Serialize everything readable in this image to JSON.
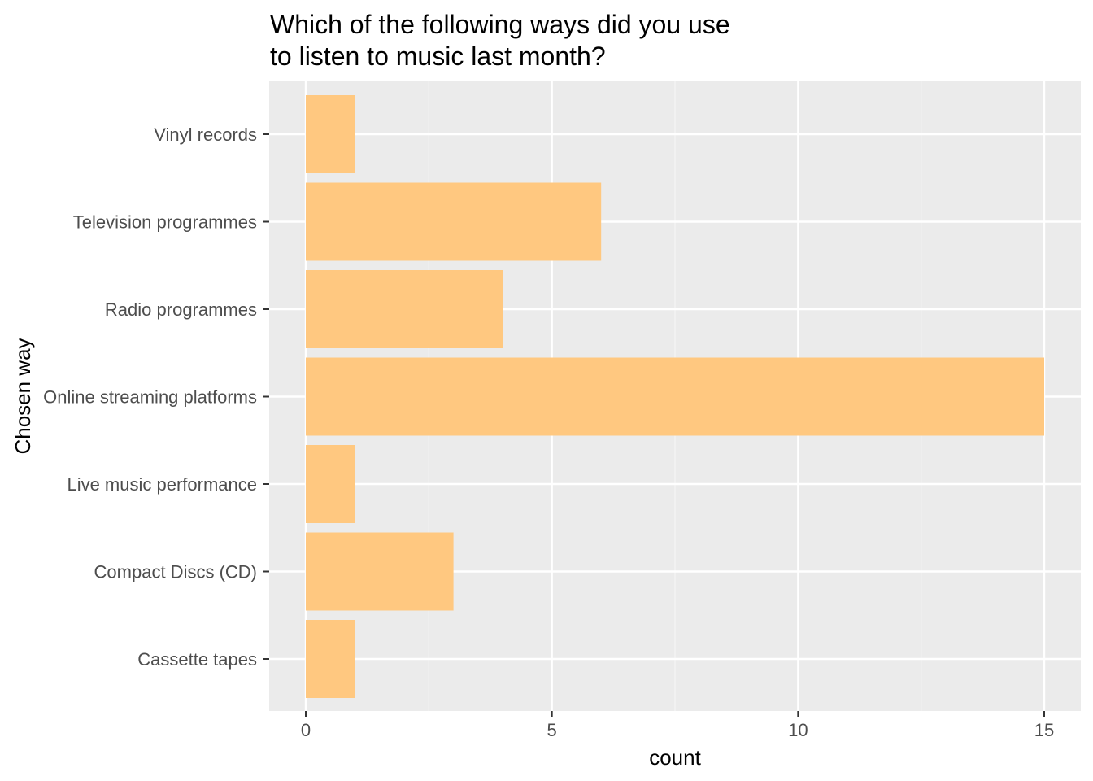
{
  "chart_data": {
    "type": "bar",
    "orientation": "horizontal",
    "title_lines": [
      "Which of the following ways did you use",
      "to listen to music last month?"
    ],
    "xlabel": "count",
    "ylabel": "Chosen way",
    "categories": [
      "Vinyl records",
      "Television programmes",
      "Radio programmes",
      "Online streaming platforms",
      "Live music performance",
      "Compact Discs (CD)",
      "Cassette tapes"
    ],
    "values": [
      1,
      6,
      4,
      15,
      1,
      3,
      1
    ],
    "xlim": [
      0,
      15
    ],
    "x_ticks": [
      0,
      5,
      10,
      15
    ],
    "x_tick_labels": [
      "0",
      "5",
      "10",
      "15"
    ],
    "grid": true,
    "legend": "none",
    "colors": {
      "bar": "#FFC880",
      "panel": "#EBEBEB",
      "grid_major": "#FFFFFF",
      "grid_minor": "#F5F5F5",
      "tick": "#333333"
    }
  }
}
